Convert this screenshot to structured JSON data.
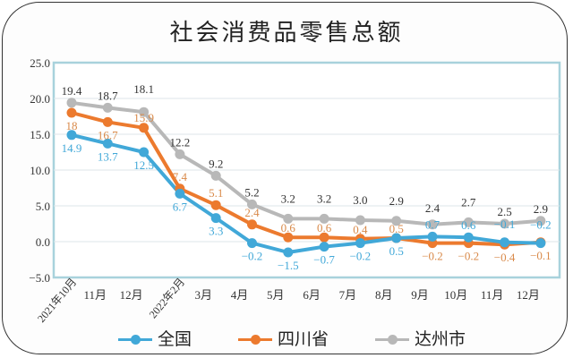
{
  "chart_data": {
    "type": "line",
    "title": "社会消费品零售总额",
    "categories": [
      "2021年10月",
      "11月",
      "12月",
      "2022年2月",
      "3月",
      "4月",
      "5月",
      "6月",
      "7月",
      "8月",
      "9月",
      "10月",
      "11月",
      "12月"
    ],
    "ylim": [
      -5.0,
      25.0
    ],
    "yticks": [
      "25.0",
      "20.0",
      "15.0",
      "10.0",
      "5.0",
      "0.0",
      "−5.0"
    ],
    "ytick_values": [
      25,
      20,
      15,
      10,
      5,
      0,
      -5
    ],
    "grid": true,
    "legend_placement": "bottom",
    "series": [
      {
        "name": "全国",
        "color": "#41a8d8",
        "values": [
          14.9,
          13.7,
          12.5,
          6.7,
          3.3,
          -0.2,
          -1.5,
          -0.7,
          -0.2,
          0.5,
          0.7,
          0.6,
          -0.1,
          -0.2
        ],
        "labels": [
          "14.9",
          "13.7",
          "12.5",
          "6.7",
          "3.3",
          "−0.2",
          "−1.5",
          "−0.7",
          "−0.2",
          "0.5",
          "0.7",
          "0.6",
          "−0.1",
          "−0.2"
        ]
      },
      {
        "name": "四川省",
        "color": "#ec7a2e",
        "values": [
          18,
          16.7,
          15.9,
          7.4,
          5.1,
          2.4,
          0.6,
          0.6,
          0.4,
          0.5,
          -0.2,
          -0.2,
          -0.4,
          -0.1
        ],
        "labels": [
          "18",
          "16.7",
          "15.9",
          "7.4",
          "5.1",
          "2.4",
          "0.6",
          "0.6",
          "0.4",
          "0.5",
          "−0.2",
          "−0.2",
          "−0.4",
          "−0.1"
        ]
      },
      {
        "name": "达州市",
        "color": "#b8b8b8",
        "values": [
          19.4,
          18.7,
          18.1,
          12.2,
          9.2,
          5.2,
          3.2,
          3.2,
          3.0,
          2.9,
          2.4,
          2.7,
          2.5,
          2.9
        ],
        "labels": [
          "19.4",
          "18.7",
          "18.1",
          "12.2",
          "9.2",
          "5.2",
          "3.2",
          "3.2",
          "3.0",
          "2.9",
          "2.4",
          "2.7",
          "2.5",
          "2.9"
        ]
      }
    ]
  }
}
